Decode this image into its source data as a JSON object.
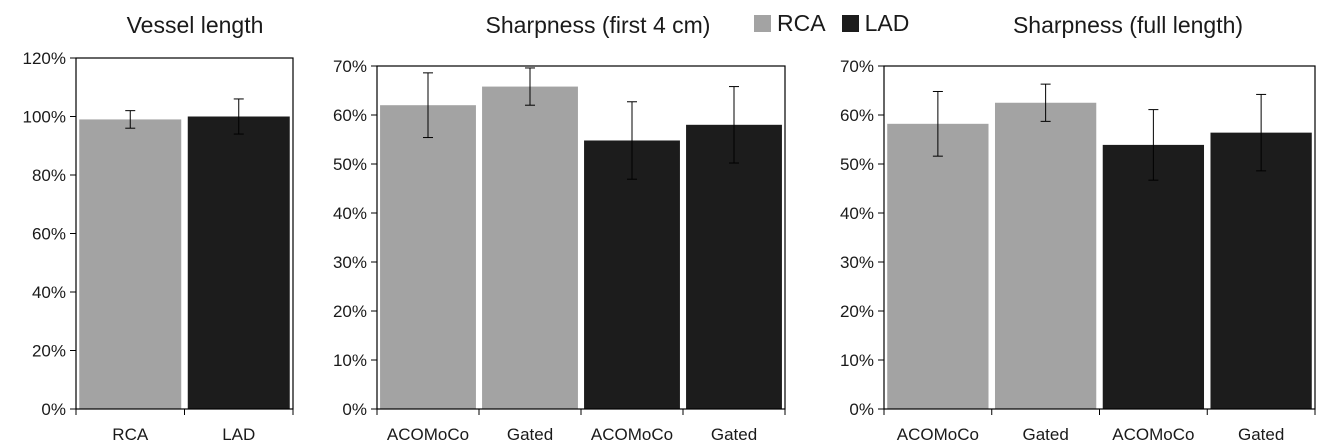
{
  "colors": {
    "RCA": "#a3a3a3",
    "LAD": "#1c1c1c",
    "axis": "#000000"
  },
  "legend": [
    {
      "label": "RCA",
      "color": "#a3a3a3"
    },
    {
      "label": "LAD",
      "color": "#1c1c1c"
    }
  ],
  "chart_data": [
    {
      "type": "bar",
      "title": "Vessel length",
      "categories": [
        "RCA",
        "LAD"
      ],
      "bar_groups": [
        "RCA",
        "LAD"
      ],
      "values": [
        99,
        100
      ],
      "errors": [
        3,
        6
      ],
      "ylim": [
        0,
        120
      ],
      "yticks": [
        "0%",
        "20%",
        "40%",
        "60%",
        "80%",
        "100%",
        "120%"
      ],
      "tick_step": 20,
      "grid": false
    },
    {
      "type": "bar",
      "title": "Sharpness (first 4 cm)",
      "categories": [
        "ACOMoCo",
        "Gated",
        "ACOMoCo",
        "Gated"
      ],
      "bar_groups": [
        "RCA",
        "RCA",
        "LAD",
        "LAD"
      ],
      "values": [
        62,
        65.8,
        54.8,
        58
      ],
      "errors": [
        6.6,
        3.8,
        7.9,
        7.8
      ],
      "ylim": [
        0,
        70
      ],
      "yticks": [
        "0%",
        "10%",
        "20%",
        "30%",
        "40%",
        "50%",
        "60%",
        "70%"
      ],
      "tick_step": 10,
      "grid": false
    },
    {
      "type": "bar",
      "title": "Sharpness (full length)",
      "categories": [
        "ACOMoCo",
        "Gated",
        "ACOMoCo",
        "Gated"
      ],
      "bar_groups": [
        "RCA",
        "RCA",
        "LAD",
        "LAD"
      ],
      "values": [
        58.2,
        62.5,
        53.9,
        56.4
      ],
      "errors": [
        6.6,
        3.8,
        7.2,
        7.8
      ],
      "ylim": [
        0,
        70
      ],
      "yticks": [
        "0%",
        "10%",
        "20%",
        "30%",
        "40%",
        "50%",
        "60%",
        "70%"
      ],
      "tick_step": 10,
      "grid": false
    }
  ]
}
